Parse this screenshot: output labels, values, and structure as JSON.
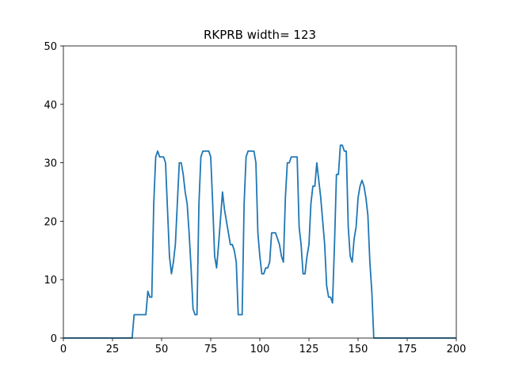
{
  "chart_data": {
    "type": "line",
    "title": "RKPRB width= 123",
    "color": "#1f77b4",
    "x": [
      0,
      35,
      36,
      42,
      43,
      44,
      45,
      46,
      47,
      48,
      49,
      51,
      52,
      54,
      55,
      56,
      57,
      58,
      59,
      60,
      61,
      62,
      63,
      64,
      65,
      66,
      67,
      68,
      69,
      70,
      71,
      74,
      75,
      76,
      77,
      78,
      79,
      81,
      82,
      84,
      85,
      86,
      87,
      88,
      89,
      91,
      92,
      93,
      94,
      97,
      98,
      99,
      100,
      101,
      102,
      103,
      104,
      105,
      106,
      108,
      109,
      110,
      111,
      112,
      113,
      114,
      115,
      116,
      119,
      120,
      121,
      122,
      123,
      124,
      125,
      126,
      127,
      128,
      129,
      130,
      131,
      132,
      133,
      134,
      135,
      136,
      137,
      138,
      139,
      140,
      141,
      142,
      143,
      144,
      145,
      146,
      147,
      148,
      149,
      150,
      151,
      152,
      153,
      154,
      155,
      156,
      157,
      158,
      200
    ],
    "values": [
      0,
      0,
      4,
      4,
      8,
      7,
      7,
      23,
      31,
      32,
      31,
      31,
      30,
      14,
      11,
      13,
      16,
      23,
      30,
      30,
      28,
      25,
      23,
      18,
      12,
      5,
      4,
      4,
      23,
      31,
      32,
      32,
      31,
      23,
      14,
      12,
      16,
      25,
      22,
      18,
      16,
      16,
      15,
      13,
      4,
      4,
      23,
      31,
      32,
      32,
      30,
      18,
      14,
      11,
      11,
      12,
      12,
      13,
      18,
      18,
      17,
      16,
      14,
      13,
      24,
      30,
      30,
      31,
      31,
      19,
      16,
      11,
      11,
      14,
      16,
      23,
      26,
      26,
      30,
      27,
      24,
      20,
      16,
      9,
      7,
      7,
      6,
      16,
      28,
      28,
      33,
      33,
      32,
      32,
      19,
      14,
      13,
      17,
      19,
      24,
      26,
      27,
      26,
      24,
      21,
      13,
      8,
      0,
      0
    ],
    "xlim": [
      0,
      200
    ],
    "xticks": [
      0,
      25,
      50,
      75,
      100,
      125,
      150,
      175,
      200
    ],
    "ylim": [
      0,
      50
    ],
    "yticks": [
      0,
      10,
      20,
      30,
      40,
      50
    ],
    "grid": false
  }
}
